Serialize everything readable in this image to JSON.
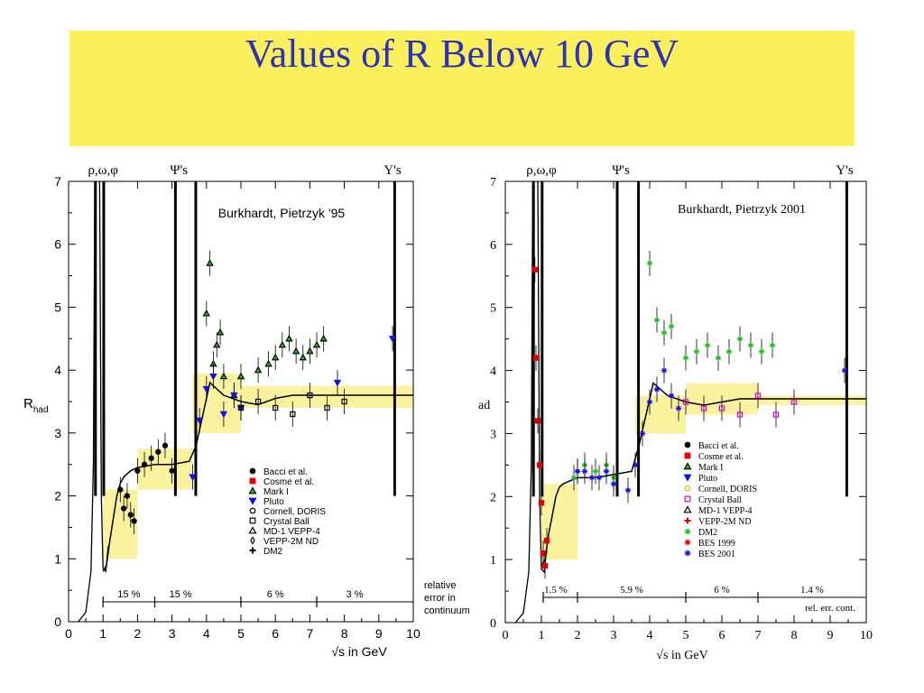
{
  "slide": {
    "title": "Values of R Below 10 GeV",
    "banner_color": "#fbef5c",
    "title_color": "#2a33b8"
  },
  "chart_data": [
    {
      "type": "scatter",
      "title": "Burkhardt, Pietrzyk '95",
      "xlabel": "√s in GeV",
      "ylabel": "R_had",
      "xlim": [
        0,
        10
      ],
      "ylim": [
        0,
        7
      ],
      "xticks": [
        "0",
        "1",
        "2",
        "3",
        "4",
        "5",
        "6",
        "7",
        "8",
        "9",
        "10"
      ],
      "yticks": [
        "0",
        "1",
        "2",
        "3",
        "4",
        "5",
        "6",
        "7"
      ],
      "resonance_labels": [
        {
          "text": "ρ,ω,φ",
          "x": 1.0
        },
        {
          "text": "Ψ's",
          "x": 3.2
        },
        {
          "text": "Υ's",
          "x": 9.4
        }
      ],
      "legend": [
        "Bacci et al.",
        "Cosme et al.",
        "Mark I",
        "Pluto",
        "Cornell, DORIS",
        "Crystal Ball",
        "MD-1 VEPP-4",
        "VEPP-2M ND",
        "DM2"
      ],
      "relative_errors": {
        "values": [
          "15 %",
          "15 %",
          "6 %",
          "3 %"
        ],
        "label_lines": [
          "relative",
          "error in",
          "continuum"
        ]
      },
      "fit_curve": {
        "x": [
          1.0,
          1.1,
          1.2,
          1.4,
          1.5,
          1.6,
          1.8,
          2.0,
          2.5,
          3.0,
          3.5,
          3.7,
          3.9,
          4.1,
          4.3,
          4.5,
          5.0,
          5.5,
          6.0,
          6.5,
          7.0,
          8.0,
          9.0,
          10.0
        ],
        "y": [
          0.8,
          0.9,
          1.3,
          2.0,
          2.2,
          2.3,
          2.4,
          2.45,
          2.5,
          2.5,
          2.55,
          2.8,
          3.3,
          3.8,
          3.7,
          3.6,
          3.5,
          3.45,
          3.55,
          3.6,
          3.6,
          3.6,
          3.6,
          3.6
        ]
      },
      "error_band": [
        {
          "x": [
            1.0,
            2.0
          ],
          "y": [
            1.0,
            2.1
          ]
        },
        {
          "x": [
            2.0,
            3.6
          ],
          "y": [
            2.1,
            2.75
          ]
        },
        {
          "x": [
            3.6,
            5.0
          ],
          "y": [
            3.0,
            3.95
          ]
        },
        {
          "x": [
            5.0,
            10.0
          ],
          "y": [
            3.4,
            3.75
          ]
        }
      ],
      "series": [
        {
          "name": "Mark I",
          "x": [
            4.0,
            4.1,
            4.2,
            4.3,
            4.4,
            4.5,
            4.8,
            5.0,
            5.5,
            5.8,
            6.0,
            6.2,
            6.4,
            6.6,
            6.8,
            7.0,
            7.2,
            7.4
          ],
          "y": [
            4.9,
            5.7,
            4.1,
            4.4,
            4.6,
            3.9,
            3.6,
            3.9,
            4.0,
            4.1,
            4.2,
            4.4,
            4.5,
            4.3,
            4.2,
            4.3,
            4.4,
            4.5
          ]
        },
        {
          "name": "Pluto",
          "x": [
            3.6,
            3.8,
            4.0,
            4.2,
            4.5,
            4.8,
            5.0,
            7.8,
            9.4
          ],
          "y": [
            2.3,
            3.2,
            3.7,
            3.9,
            3.3,
            3.6,
            3.4,
            3.8,
            4.5
          ]
        },
        {
          "name": "Crystal Ball",
          "x": [
            5.0,
            5.5,
            6.0,
            6.5,
            7.0,
            7.5,
            8.0
          ],
          "y": [
            3.4,
            3.5,
            3.4,
            3.3,
            3.6,
            3.4,
            3.5
          ]
        },
        {
          "name": "Bacci et al.",
          "x": [
            1.5,
            1.6,
            1.7,
            1.8,
            1.9,
            2.0,
            2.2,
            2.4,
            2.6,
            2.8,
            3.0
          ],
          "y": [
            2.1,
            1.8,
            2.0,
            1.7,
            1.6,
            2.4,
            2.5,
            2.6,
            2.7,
            2.8,
            2.4
          ]
        }
      ]
    },
    {
      "type": "scatter",
      "title": "Burkhardt, Pietrzyk 2001",
      "xlabel": "√s in GeV",
      "ylabel": "ad",
      "xlim": [
        0,
        10
      ],
      "ylim": [
        0,
        7
      ],
      "xticks": [
        "0",
        "1",
        "2",
        "3",
        "4",
        "5",
        "6",
        "7",
        "8",
        "9",
        "10"
      ],
      "yticks": [
        "0",
        "1",
        "2",
        "3",
        "4",
        "5",
        "6",
        "7"
      ],
      "resonance_labels": [
        {
          "text": "ρ,ω,φ",
          "x": 1.0
        },
        {
          "text": "Ψ's",
          "x": 3.2
        },
        {
          "text": "Υ's",
          "x": 9.4
        }
      ],
      "legend": [
        "Bacci et al.",
        "Cosme et al.",
        "Mark I",
        "Pluto",
        "Cornell, DORIS",
        "Crystal Ball",
        "MD-1 VEPP-4",
        "VEPP-2M ND",
        "DM2",
        "BES 1999",
        "BES 2001"
      ],
      "relative_errors": {
        "values": [
          "1.5 %",
          "5.9 %",
          "6 %",
          "1.4 %"
        ],
        "label_lines": [
          "rel. err. cont."
        ]
      },
      "fit_curve": {
        "x": [
          1.0,
          1.1,
          1.2,
          1.4,
          1.5,
          1.6,
          1.8,
          2.0,
          2.5,
          3.0,
          3.5,
          3.7,
          3.9,
          4.1,
          4.3,
          4.5,
          5.0,
          5.5,
          6.0,
          6.5,
          7.0,
          8.0,
          9.0,
          10.0
        ],
        "y": [
          0.9,
          1.0,
          1.4,
          2.0,
          2.15,
          2.2,
          2.25,
          2.3,
          2.3,
          2.35,
          2.4,
          2.8,
          3.3,
          3.8,
          3.7,
          3.6,
          3.5,
          3.45,
          3.5,
          3.55,
          3.55,
          3.55,
          3.55,
          3.55
        ]
      },
      "error_band": [
        {
          "x": [
            1.0,
            2.0
          ],
          "y": [
            1.0,
            2.2
          ]
        },
        {
          "x": [
            3.6,
            5.0
          ],
          "y": [
            3.0,
            3.6
          ]
        },
        {
          "x": [
            5.0,
            7.0
          ],
          "y": [
            3.3,
            3.8
          ]
        },
        {
          "x": [
            7.0,
            10.0
          ],
          "y": [
            3.45,
            3.6
          ]
        }
      ],
      "series": [
        {
          "name": "DM2",
          "x": [
            1.9,
            2.0,
            2.2,
            2.5,
            2.8,
            3.0,
            4.0,
            4.2,
            4.4,
            4.6,
            5.0,
            5.3,
            5.6,
            5.9,
            6.2,
            6.5,
            6.8,
            7.1,
            7.4
          ],
          "y": [
            2.3,
            2.4,
            2.5,
            2.4,
            2.5,
            2.3,
            5.7,
            4.8,
            4.6,
            4.7,
            4.2,
            4.3,
            4.4,
            4.2,
            4.3,
            4.5,
            4.4,
            4.3,
            4.4
          ]
        },
        {
          "name": "BES 2001",
          "x": [
            2.0,
            2.2,
            2.4,
            2.6,
            2.8,
            3.0,
            3.4,
            3.6,
            3.8,
            4.0,
            4.2,
            4.4,
            4.6,
            4.8,
            9.4
          ],
          "y": [
            2.4,
            2.4,
            2.3,
            2.3,
            2.4,
            2.2,
            2.1,
            2.5,
            3.0,
            3.5,
            3.7,
            4.0,
            3.6,
            3.4,
            4.0
          ]
        },
        {
          "name": "Crystal Ball",
          "x": [
            5.0,
            5.5,
            6.0,
            6.5,
            7.0,
            7.5,
            8.0
          ],
          "y": [
            3.5,
            3.4,
            3.4,
            3.3,
            3.6,
            3.3,
            3.5
          ]
        },
        {
          "name": "Cosme et al.",
          "x": [
            0.82,
            0.85,
            0.9,
            0.95,
            1.0,
            1.05,
            1.1,
            1.15
          ],
          "y": [
            5.6,
            4.2,
            3.2,
            2.5,
            1.9,
            1.1,
            0.9,
            1.3
          ]
        }
      ]
    }
  ]
}
